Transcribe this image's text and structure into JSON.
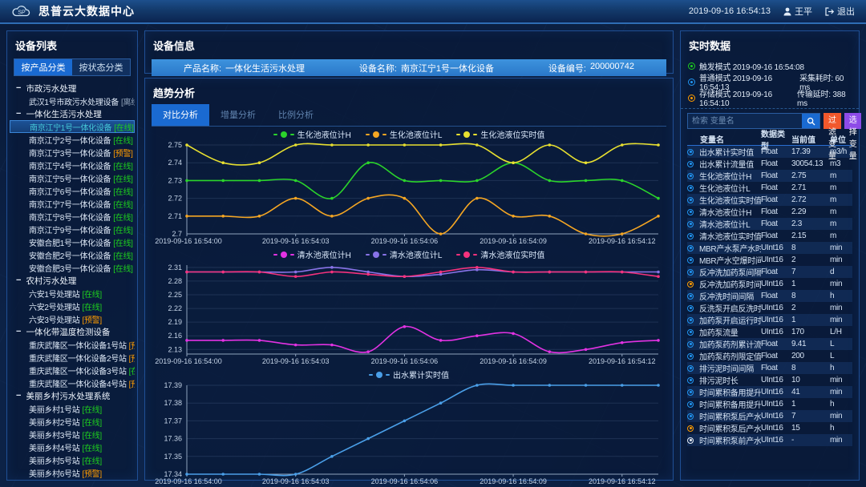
{
  "header": {
    "app_title": "思普云大数据中心",
    "logo_text": "SP",
    "datetime": "2019-09-16 16:54:13",
    "user_name": "王平",
    "logout_label": "退出"
  },
  "icons": {
    "collapse_minus": "−"
  },
  "sidebar": {
    "title": "设备列表",
    "tabs": [
      {
        "label": "按产品分类",
        "active": true
      },
      {
        "label": "按状态分类",
        "active": false
      }
    ],
    "status_colors": {
      "在线": "#1ed11e",
      "预警": "#ff9c00",
      "离线": "#93a5bb"
    },
    "groups": [
      {
        "label": "市政污水处理",
        "items": [
          {
            "name": "武汉1号市政污水处理设备",
            "status": "离线"
          }
        ]
      },
      {
        "label": "一体化生活污水处理",
        "items": [
          {
            "name": "南京江宁1号一体化设备",
            "status": "在线",
            "selected": true
          },
          {
            "name": "南京江宁2号一体化设备",
            "status": "在线"
          },
          {
            "name": "南京江宁3号一体化设备",
            "status": "预警"
          },
          {
            "name": "南京江宁4号一体化设备",
            "status": "在线"
          },
          {
            "name": "南京江宁5号一体化设备",
            "status": "在线"
          },
          {
            "name": "南京江宁6号一体化设备",
            "status": "在线"
          },
          {
            "name": "南京江宁7号一体化设备",
            "status": "在线"
          },
          {
            "name": "南京江宁8号一体化设备",
            "status": "在线"
          },
          {
            "name": "南京江宁9号一体化设备",
            "status": "在线"
          },
          {
            "name": "安徽合肥1号一体化设备",
            "status": "在线"
          },
          {
            "name": "安徽合肥2号一体化设备",
            "status": "在线"
          },
          {
            "name": "安徽合肥3号一体化设备",
            "status": "在线"
          }
        ]
      },
      {
        "label": "农村污水处理",
        "items": [
          {
            "name": "六安1号处理站",
            "status": "在线"
          },
          {
            "name": "六安2号处理站",
            "status": "在线"
          },
          {
            "name": "六安3号处理站",
            "status": "预警"
          }
        ]
      },
      {
        "label": "一体化带温度检测设备",
        "items": [
          {
            "name": "重庆武隆区一体化设备1号站",
            "status": "预警"
          },
          {
            "name": "重庆武隆区一体化设备2号站",
            "status": "预警"
          },
          {
            "name": "重庆武隆区一体化设备3号站",
            "status": "在线"
          },
          {
            "name": "重庆武隆区一体化设备4号站",
            "status": "预警"
          }
        ]
      },
      {
        "label": "美丽乡村污水处理系统",
        "items": [
          {
            "name": "美丽乡村1号站",
            "status": "在线"
          },
          {
            "name": "美丽乡村2号站",
            "status": "在线"
          },
          {
            "name": "美丽乡村3号站",
            "status": "在线"
          },
          {
            "name": "美丽乡村4号站",
            "status": "在线"
          },
          {
            "name": "美丽乡村5号站",
            "status": "在线"
          },
          {
            "name": "美丽乡村6号站",
            "status": "预警"
          }
        ]
      }
    ]
  },
  "device_info": {
    "title": "设备信息",
    "fields": [
      {
        "label": "产品名称:",
        "value": "一体化生活污水处理"
      },
      {
        "label": "设备名称:",
        "value": "南京江宁1号一体化设备"
      },
      {
        "label": "设备编号:",
        "value": "200000742"
      }
    ]
  },
  "trend": {
    "title": "趋势分析",
    "tabs": [
      {
        "label": "对比分析",
        "active": true
      },
      {
        "label": "增量分析",
        "active": false
      },
      {
        "label": "比例分析",
        "active": false
      }
    ]
  },
  "chart_data": [
    {
      "type": "line",
      "title": "",
      "xlabel": "",
      "ylabel": "",
      "legend_position": "top",
      "grid": true,
      "x_labels": [
        "2019-09-16 16:54:00",
        "2019-09-16 16:54:03",
        "2019-09-16 16:54:06",
        "2019-09-16 16:54:09",
        "2019-09-16 16:54:12"
      ],
      "x_label_idx": [
        0,
        3,
        6,
        9,
        12
      ],
      "n_points": 14,
      "ylim": [
        2.7,
        2.75
      ],
      "y_ticks": [
        "2.75",
        "2.74",
        "2.73",
        "2.72",
        "2.71",
        "2.7"
      ],
      "series": [
        {
          "name": "生化池液位计H",
          "color": "#2bd42b",
          "values": [
            2.73,
            2.73,
            2.73,
            2.73,
            2.72,
            2.74,
            2.73,
            2.73,
            2.73,
            2.74,
            2.73,
            2.73,
            2.73,
            2.72
          ]
        },
        {
          "name": "生化池液位计L",
          "color": "#f5a623",
          "values": [
            2.71,
            2.71,
            2.71,
            2.72,
            2.71,
            2.72,
            2.72,
            2.7,
            2.72,
            2.71,
            2.71,
            2.7,
            2.7,
            2.71
          ]
        },
        {
          "name": "生化池液位实时值",
          "color": "#e8e030",
          "values": [
            2.75,
            2.74,
            2.74,
            2.75,
            2.75,
            2.75,
            2.75,
            2.75,
            2.75,
            2.74,
            2.75,
            2.74,
            2.75,
            2.75
          ]
        }
      ]
    },
    {
      "type": "line",
      "title": "",
      "xlabel": "",
      "ylabel": "",
      "legend_position": "top",
      "grid": true,
      "x_labels": [
        "2019-09-16 16:54:00",
        "2019-09-16 16:54:03",
        "2019-09-16 16:54:06",
        "2019-09-16 16:54:09",
        "2019-09-16 16:54:12"
      ],
      "x_label_idx": [
        0,
        3,
        6,
        9,
        12
      ],
      "n_points": 14,
      "ylim": [
        2.12,
        2.315
      ],
      "y_ticks": [
        "2.31",
        "2.28",
        "2.25",
        "2.22",
        "2.19",
        "2.16",
        "2.13"
      ],
      "series": [
        {
          "name": "清水池液位计H",
          "color": "#e332e3",
          "values": [
            2.15,
            2.15,
            2.15,
            2.14,
            2.14,
            2.125,
            2.18,
            2.15,
            2.16,
            2.165,
            2.125,
            2.13,
            2.145,
            2.15
          ]
        },
        {
          "name": "清水池液位计L",
          "color": "#8873e8",
          "values": [
            2.3,
            2.3,
            2.3,
            2.3,
            2.31,
            2.3,
            2.29,
            2.295,
            2.305,
            2.3,
            2.3,
            2.3,
            2.3,
            2.3
          ]
        },
        {
          "name": "清水池液位实时值",
          "color": "#f5327d",
          "values": [
            2.3,
            2.3,
            2.3,
            2.29,
            2.3,
            2.295,
            2.29,
            2.3,
            2.31,
            2.3,
            2.3,
            2.3,
            2.3,
            2.29
          ]
        }
      ]
    },
    {
      "type": "line",
      "title": "",
      "xlabel": "",
      "ylabel": "",
      "legend_position": "top",
      "grid": true,
      "x_labels": [
        "2019-09-16 16:54:00",
        "2019-09-16 16:54:03",
        "2019-09-16 16:54:06",
        "2019-09-16 16:54:09",
        "2019-09-16 16:54:12"
      ],
      "x_label_idx": [
        0,
        3,
        6,
        9,
        12
      ],
      "n_points": 14,
      "ylim": [
        17.34,
        17.39
      ],
      "y_ticks": [
        "17.39",
        "17.38",
        "17.37",
        "17.36",
        "17.35",
        "17.34"
      ],
      "series": [
        {
          "name": "出水累计实时值",
          "color": "#4a9fe8",
          "values": [
            17.34,
            17.34,
            17.34,
            17.34,
            17.35,
            17.36,
            17.37,
            17.38,
            17.39,
            17.39,
            17.39,
            17.39,
            17.39,
            17.39
          ]
        }
      ]
    }
  ],
  "realtime": {
    "title": "实时数据",
    "modes": [
      {
        "label": "触发模式",
        "time": "2019-09-16 16:54:08",
        "color": "#1ed11e",
        "extra_label": "",
        "extra_value": ""
      },
      {
        "label": "普通模式",
        "time": "2019-09-16 16:54:13",
        "color": "#2196f3",
        "extra_label": "采集耗时:",
        "extra_value": "60 ms"
      },
      {
        "label": "存储模式",
        "time": "2019-09-16 16:54:10",
        "color": "#ff9c00",
        "extra_label": "传输延时:",
        "extra_value": "388 ms"
      }
    ],
    "search_placeholder": "检索 变量名",
    "filter_button": "过滤变量",
    "select_button": "选择变量",
    "table": {
      "headers": [
        "变量名",
        "数据类型",
        "当前值",
        "单位"
      ],
      "icon_colors": {
        "blue": "#2196f3",
        "orange": "#ff9c00",
        "white": "#e8eef6"
      },
      "rows": [
        {
          "icon": "blue",
          "name": "出水累计实时值",
          "type": "Float",
          "value": "17.39",
          "unit": "m3/h"
        },
        {
          "icon": "blue",
          "name": "出水累计流量值",
          "type": "Float",
          "value": "30054.13",
          "unit": "m3"
        },
        {
          "icon": "blue",
          "name": "生化池液位计H",
          "type": "Float",
          "value": "2.75",
          "unit": "m"
        },
        {
          "icon": "blue",
          "name": "生化池液位计L",
          "type": "Float",
          "value": "2.71",
          "unit": "m"
        },
        {
          "icon": "blue",
          "name": "生化池液位实时值",
          "type": "Float",
          "value": "2.72",
          "unit": "m"
        },
        {
          "icon": "blue",
          "name": "清水池液位计H",
          "type": "Float",
          "value": "2.29",
          "unit": "m"
        },
        {
          "icon": "blue",
          "name": "清水池液位计L",
          "type": "Float",
          "value": "2.3",
          "unit": "m"
        },
        {
          "icon": "blue",
          "name": "清水池液位实时值",
          "type": "Float",
          "value": "2.15",
          "unit": "m"
        },
        {
          "icon": "blue",
          "name": "MBR产水泵产水时间分",
          "type": "UInt16",
          "value": "8",
          "unit": "min"
        },
        {
          "icon": "blue",
          "name": "MBR产水空爆时间分",
          "type": "UInt16",
          "value": "2",
          "unit": "min"
        },
        {
          "icon": "blue",
          "name": "反冲洗加药泵间隔时间",
          "type": "Float",
          "value": "7",
          "unit": "d"
        },
        {
          "icon": "orange",
          "name": "反冲洗加药泵时间",
          "type": "UInt16",
          "value": "1",
          "unit": "min"
        },
        {
          "icon": "blue",
          "name": "反冲洗时间间隔",
          "type": "Float",
          "value": "8",
          "unit": "h"
        },
        {
          "icon": "blue",
          "name": "反洗泵开启反洗时长",
          "type": "UInt16",
          "value": "2",
          "unit": "min"
        },
        {
          "icon": "blue",
          "name": "加药泵开启运行时间",
          "type": "UInt16",
          "value": "1",
          "unit": "min"
        },
        {
          "icon": "blue",
          "name": "加药泵流量",
          "type": "UInt16",
          "value": "170",
          "unit": "L/H"
        },
        {
          "icon": "blue",
          "name": "加药泵药剂累计流量",
          "type": "Float",
          "value": "9.41",
          "unit": "L"
        },
        {
          "icon": "blue",
          "name": "加药泵药剂限定值",
          "type": "Float",
          "value": "200",
          "unit": "L"
        },
        {
          "icon": "blue",
          "name": "排污泥时间间隔",
          "type": "Float",
          "value": "8",
          "unit": "h"
        },
        {
          "icon": "blue",
          "name": "排污泥时长",
          "type": "UInt16",
          "value": "10",
          "unit": "min"
        },
        {
          "icon": "blue",
          "name": "时间累积备用提升泵分",
          "type": "UInt16",
          "value": "41",
          "unit": "min"
        },
        {
          "icon": "blue",
          "name": "时间累积备用提升泵时",
          "type": "UInt16",
          "value": "1",
          "unit": "h"
        },
        {
          "icon": "blue",
          "name": "时间累积泵后产水电动阀分",
          "type": "UInt16",
          "value": "7",
          "unit": "min"
        },
        {
          "icon": "orange",
          "name": "时间累积泵后产水电动阀时",
          "type": "UInt16",
          "value": "15",
          "unit": "h"
        },
        {
          "icon": "white",
          "name": "时间累积泵前产水电动阀分",
          "type": "UInt16",
          "value": "-",
          "unit": "min"
        }
      ]
    }
  }
}
